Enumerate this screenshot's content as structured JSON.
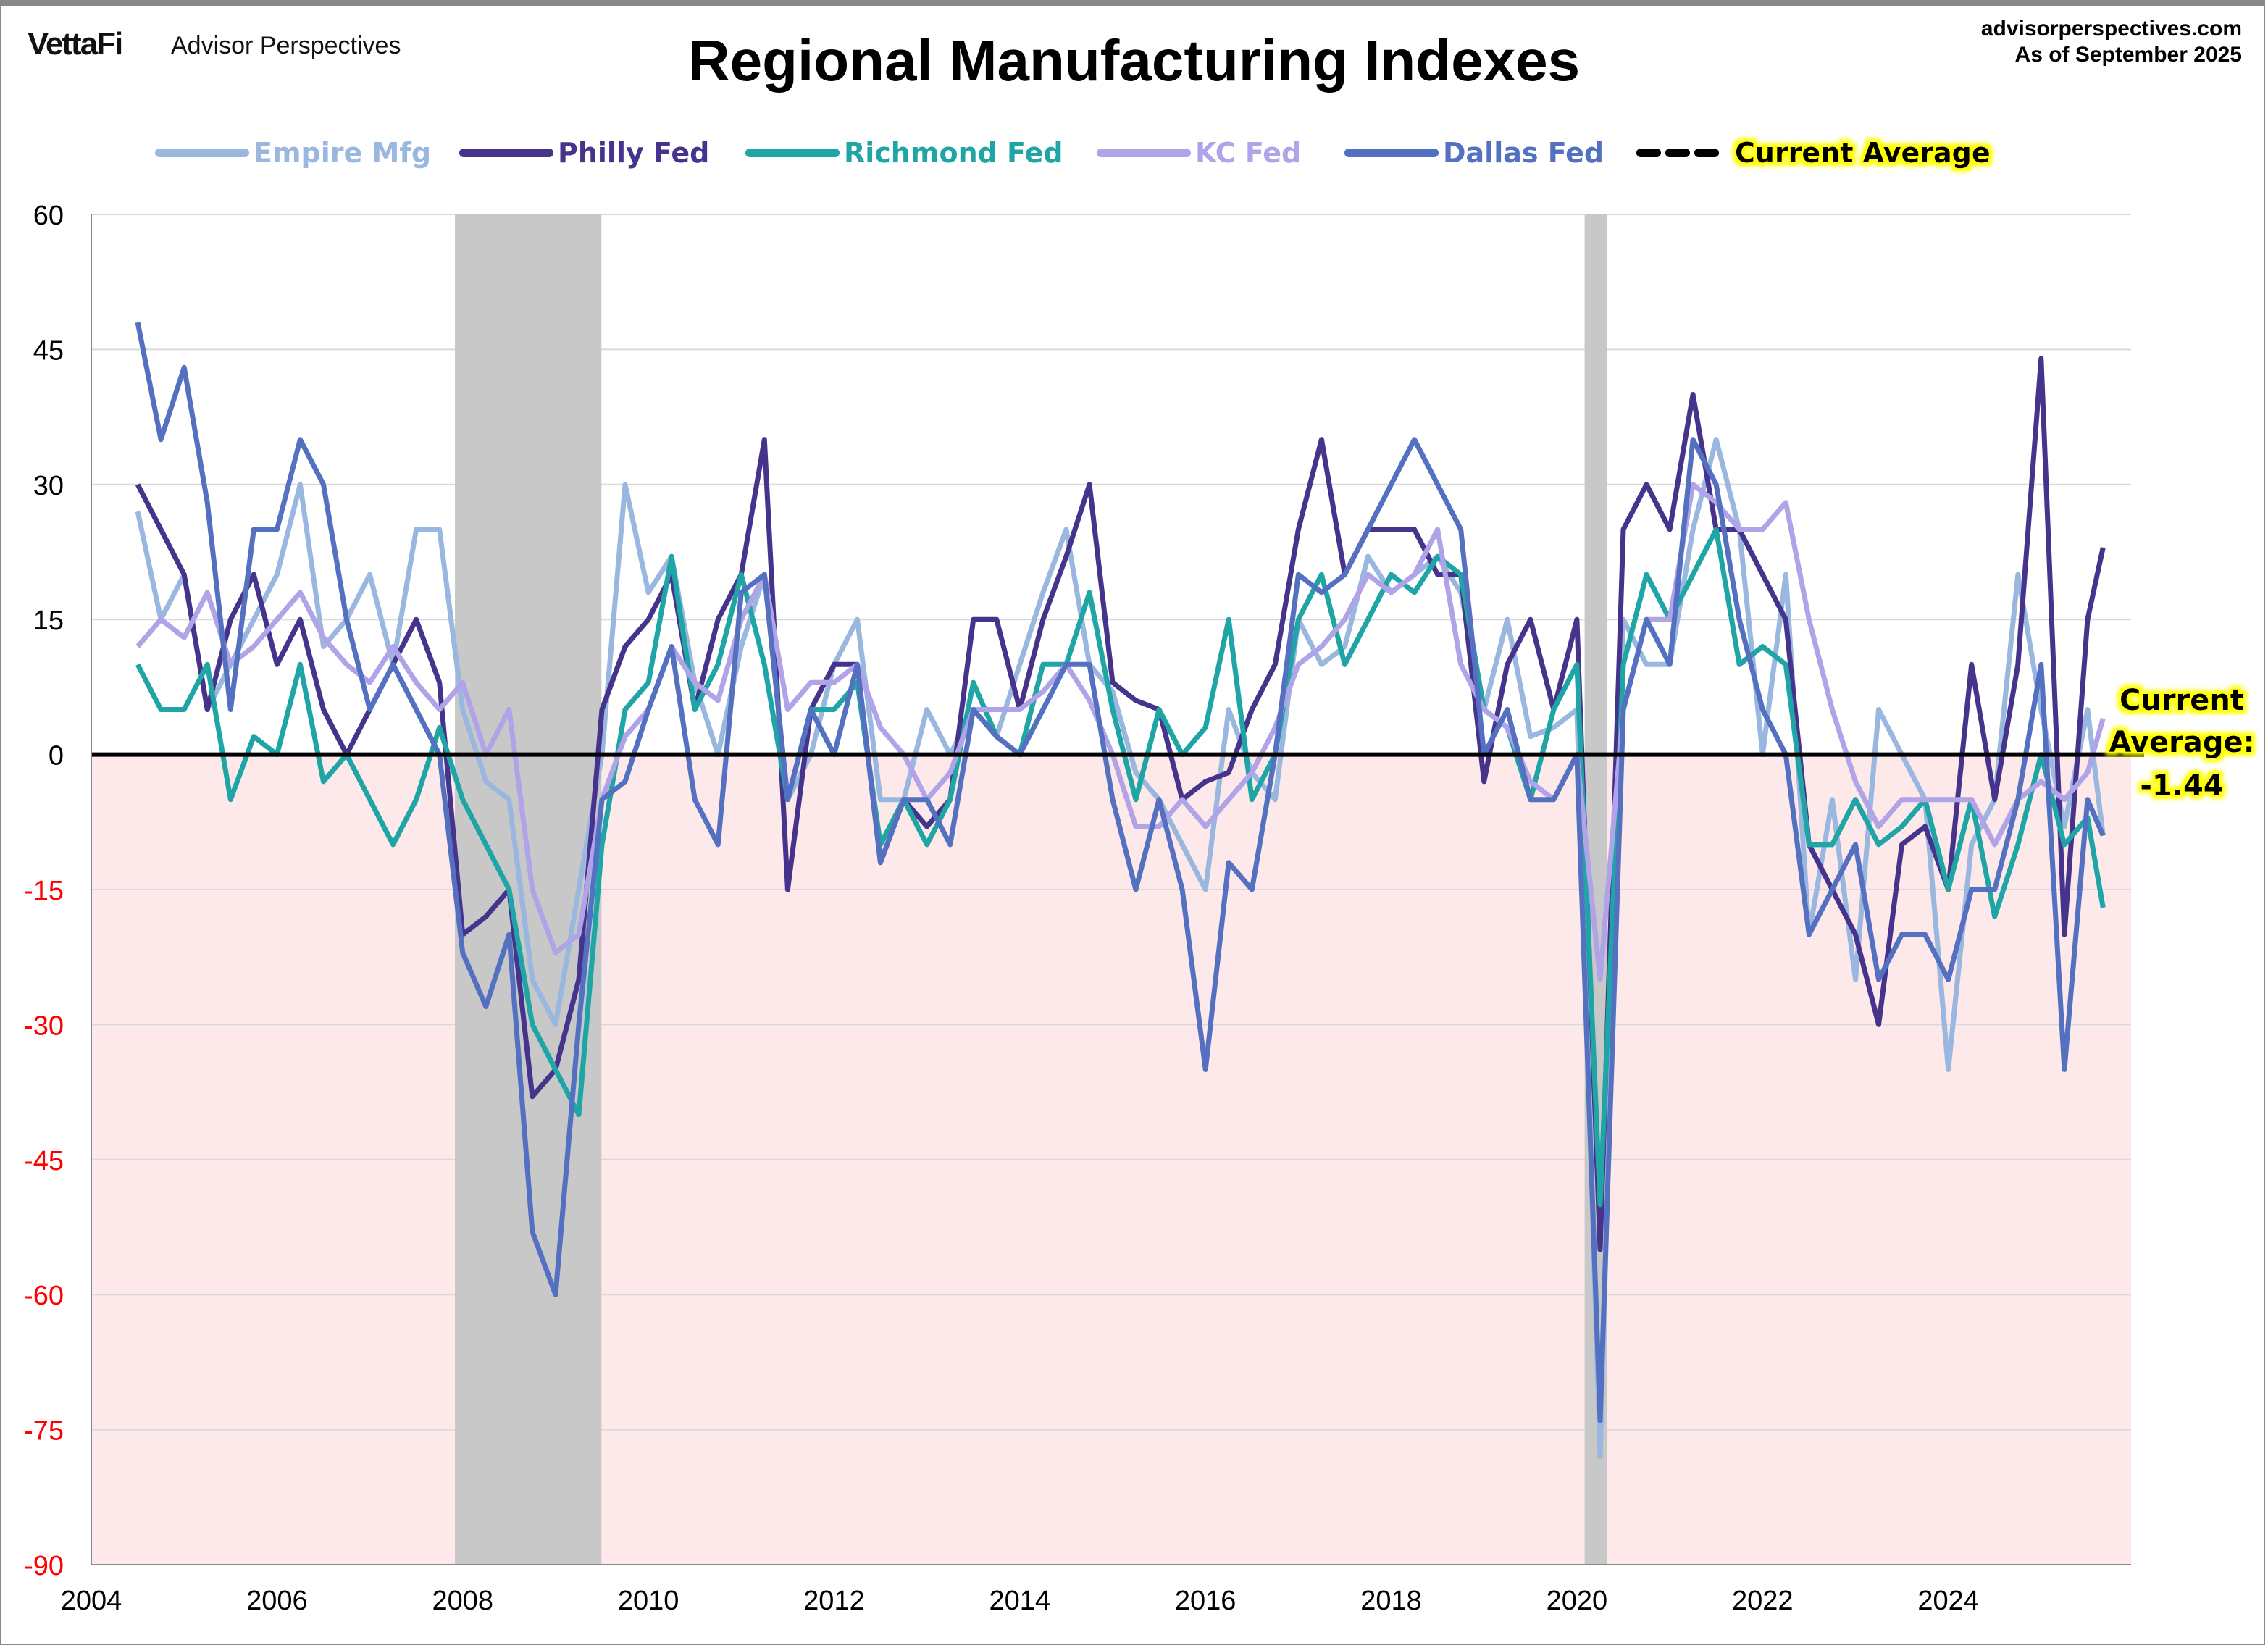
{
  "header": {
    "brand": "VettaFi",
    "brand_sub": "Advisor Perspectives",
    "title": "Regional Manufacturing Indexes",
    "source": "advisorperspectives.com",
    "as_of": "As of September 2025"
  },
  "chart_data": {
    "type": "line",
    "title": "Regional Manufacturing Indexes",
    "xlabel": "",
    "ylabel": "",
    "xlim": [
      "2004-01",
      "2026-01"
    ],
    "ylim": [
      -90,
      60
    ],
    "yticks": [
      60,
      45,
      30,
      15,
      0,
      -15,
      -30,
      -45,
      -60,
      -75,
      -90
    ],
    "xticks": [
      "2004",
      "2006",
      "2008",
      "2010",
      "2012",
      "2014",
      "2016",
      "2018",
      "2020",
      "2022",
      "2024"
    ],
    "grid": true,
    "legend_position": "top",
    "negative_region_color": "#fde9e9",
    "negative_tick_color": "#ff0000",
    "recessions": [
      [
        "2007-12",
        "2009-06"
      ],
      [
        "2020-02",
        "2020-04"
      ]
    ],
    "recession_color": "#c8c8c8",
    "current_average": {
      "label": "Current Average",
      "annotation_line1": "Current",
      "annotation_line2": "Average:",
      "value": -1.44,
      "value_label": "-1.44",
      "start": "2004-07",
      "end": "2025-09"
    },
    "x": [
      "2004-07",
      "2004-10",
      "2005-01",
      "2005-04",
      "2005-07",
      "2005-10",
      "2006-01",
      "2006-04",
      "2006-07",
      "2006-10",
      "2007-01",
      "2007-04",
      "2007-07",
      "2007-10",
      "2008-01",
      "2008-04",
      "2008-07",
      "2008-10",
      "2009-01",
      "2009-04",
      "2009-07",
      "2009-10",
      "2010-01",
      "2010-04",
      "2010-07",
      "2010-10",
      "2011-01",
      "2011-04",
      "2011-07",
      "2011-10",
      "2012-01",
      "2012-04",
      "2012-07",
      "2012-10",
      "2013-01",
      "2013-04",
      "2013-07",
      "2013-10",
      "2014-01",
      "2014-04",
      "2014-07",
      "2014-10",
      "2015-01",
      "2015-04",
      "2015-07",
      "2015-10",
      "2016-01",
      "2016-04",
      "2016-07",
      "2016-10",
      "2017-01",
      "2017-04",
      "2017-07",
      "2017-10",
      "2018-01",
      "2018-04",
      "2018-07",
      "2018-10",
      "2019-01",
      "2019-04",
      "2019-07",
      "2019-10",
      "2020-01",
      "2020-04",
      "2020-07",
      "2020-10",
      "2021-01",
      "2021-04",
      "2021-07",
      "2021-10",
      "2022-01",
      "2022-04",
      "2022-07",
      "2022-10",
      "2023-01",
      "2023-04",
      "2023-07",
      "2023-10",
      "2024-01",
      "2024-04",
      "2024-07",
      "2024-10",
      "2025-01",
      "2025-04",
      "2025-07",
      "2025-09"
    ],
    "series": [
      {
        "name": "Empire Mfg",
        "color": "#9ab7e0",
        "values": [
          27,
          15,
          20,
          5,
          10,
          15,
          20,
          30,
          12,
          15,
          20,
          10,
          25,
          25,
          5,
          -3,
          -5,
          -25,
          -30,
          -15,
          0,
          30,
          18,
          22,
          8,
          0,
          12,
          20,
          -5,
          0,
          10,
          15,
          -5,
          -5,
          5,
          0,
          5,
          2,
          10,
          18,
          25,
          10,
          7,
          -2,
          -5,
          -10,
          -15,
          5,
          -2,
          -5,
          15,
          10,
          12,
          22,
          18,
          20,
          22,
          18,
          5,
          15,
          2,
          3,
          5,
          -78,
          15,
          10,
          10,
          25,
          35,
          25,
          0,
          20,
          -20,
          -5,
          -25,
          5,
          0,
          -5,
          -35,
          -10,
          -5,
          20,
          5,
          -8,
          5,
          -9
        ]
      },
      {
        "name": "Philly Fed",
        "color": "#46338c",
        "values": [
          30,
          25,
          20,
          5,
          15,
          20,
          10,
          15,
          5,
          0,
          5,
          10,
          15,
          8,
          -20,
          -18,
          -15,
          -38,
          -35,
          -25,
          5,
          12,
          15,
          20,
          5,
          15,
          20,
          35,
          -15,
          5,
          10,
          10,
          -12,
          -5,
          -8,
          -5,
          15,
          15,
          5,
          15,
          22,
          30,
          8,
          6,
          5,
          -5,
          -3,
          -2,
          5,
          10,
          25,
          35,
          20,
          25,
          25,
          25,
          20,
          20,
          -3,
          10,
          15,
          5,
          15,
          -55,
          25,
          30,
          25,
          40,
          25,
          25,
          20,
          15,
          -10,
          -15,
          -20,
          -30,
          -10,
          -8,
          -15,
          10,
          -5,
          10,
          44,
          -20,
          15,
          23
        ]
      },
      {
        "name": "Richmond Fed",
        "color": "#1fa5a5",
        "values": [
          10,
          5,
          5,
          10,
          -5,
          2,
          0,
          10,
          -3,
          0,
          -5,
          -10,
          -5,
          3,
          -5,
          -10,
          -15,
          -30,
          -35,
          -40,
          -10,
          5,
          8,
          22,
          5,
          10,
          20,
          10,
          -5,
          5,
          5,
          8,
          -10,
          -5,
          -10,
          -5,
          8,
          2,
          0,
          10,
          10,
          18,
          5,
          -5,
          5,
          0,
          3,
          15,
          -5,
          0,
          15,
          20,
          10,
          15,
          20,
          18,
          22,
          20,
          5,
          3,
          -5,
          5,
          10,
          -50,
          10,
          20,
          15,
          20,
          25,
          10,
          12,
          10,
          -10,
          -10,
          -5,
          -10,
          -8,
          -5,
          -15,
          -5,
          -18,
          -10,
          0,
          -10,
          -7,
          -17
        ]
      },
      {
        "name": "KC Fed",
        "color": "#b0a3e8",
        "values": [
          12,
          15,
          13,
          18,
          10,
          12,
          15,
          18,
          13,
          10,
          8,
          12,
          8,
          5,
          8,
          0,
          5,
          -15,
          -22,
          -20,
          -5,
          2,
          5,
          12,
          8,
          6,
          15,
          20,
          5,
          8,
          8,
          10,
          3,
          0,
          -5,
          -2,
          5,
          5,
          5,
          7,
          10,
          6,
          0,
          -8,
          -8,
          -5,
          -8,
          -5,
          -2,
          3,
          10,
          12,
          15,
          20,
          18,
          20,
          25,
          10,
          5,
          3,
          -3,
          -5,
          0,
          -25,
          5,
          15,
          15,
          30,
          28,
          25,
          25,
          28,
          15,
          5,
          -3,
          -8,
          -5,
          -5,
          -5,
          -5,
          -10,
          -5,
          -3,
          -5,
          -2,
          4
        ]
      },
      {
        "name": "Dallas Fed",
        "color": "#5470c0",
        "values": [
          48,
          35,
          43,
          28,
          5,
          25,
          25,
          35,
          30,
          15,
          5,
          10,
          5,
          0,
          -22,
          -28,
          -20,
          -53,
          -60,
          -30,
          -5,
          -3,
          5,
          12,
          -5,
          -10,
          18,
          20,
          -5,
          5,
          0,
          10,
          -12,
          -5,
          -5,
          -10,
          5,
          2,
          0,
          5,
          10,
          10,
          -5,
          -15,
          -5,
          -15,
          -35,
          -12,
          -15,
          0,
          20,
          18,
          20,
          25,
          30,
          35,
          30,
          25,
          0,
          5,
          -5,
          -5,
          0,
          -74,
          5,
          15,
          10,
          35,
          30,
          15,
          5,
          0,
          -20,
          -15,
          -10,
          -25,
          -20,
          -20,
          -25,
          -15,
          -15,
          -5,
          10,
          -35,
          -5,
          -9
        ]
      }
    ]
  }
}
